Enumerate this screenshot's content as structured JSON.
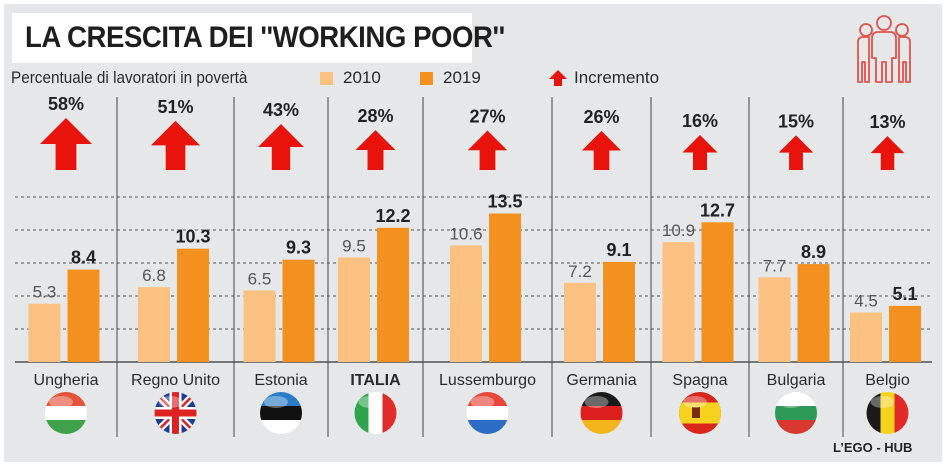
{
  "header": {
    "title": "LA CRESCITA DEI ''WORKING POOR''",
    "subtitle": "Percentuale di lavoratori in povertà",
    "legend": [
      {
        "label": "2010",
        "color": "#fbc180"
      },
      {
        "label": "2019",
        "color": "#f4911e"
      },
      {
        "label": "Incremento",
        "color": "#e8140c",
        "icon": "arrow-up-icon"
      }
    ],
    "icon": "people-group-icon"
  },
  "credit": "L’EGO - HUB",
  "chart_data": {
    "type": "bar",
    "title": "LA CRESCITA DEI ''WORKING POOR''",
    "subtitle": "Percentuale di lavoratori in povertà",
    "xlabel": "",
    "ylabel": "Percentuale di lavoratori in povertà",
    "ylim": [
      0,
      15
    ],
    "gridlines": [
      3,
      6,
      9,
      12,
      15
    ],
    "grid": true,
    "legend_position": "top",
    "categories": [
      "Ungheria",
      "Regno Unito",
      "Estonia",
      "ITALIA",
      "Lussemburgo",
      "Germania",
      "Spagna",
      "Bulgaria",
      "Belgio"
    ],
    "highlight_category": "ITALIA",
    "series": [
      {
        "name": "2010",
        "color": "#fbc180",
        "values": [
          5.3,
          6.8,
          6.5,
          9.5,
          10.6,
          7.2,
          10.9,
          7.7,
          4.5
        ]
      },
      {
        "name": "2019",
        "color": "#f4911e",
        "values": [
          8.4,
          10.3,
          9.3,
          12.2,
          13.5,
          9.1,
          12.7,
          8.9,
          5.1
        ]
      }
    ],
    "increment_labels": [
      "58%",
      "51%",
      "43%",
      "28%",
      "27%",
      "26%",
      "16%",
      "15%",
      "13%"
    ],
    "increment_values": [
      58,
      51,
      43,
      28,
      27,
      26,
      16,
      15,
      13
    ],
    "flags": [
      "flag-hungary-icon",
      "flag-uk-icon",
      "flag-estonia-icon",
      "flag-italy-icon",
      "flag-luxembourg-icon",
      "flag-germany-icon",
      "flag-spain-icon",
      "flag-bulgaria-icon",
      "flag-belgium-icon"
    ]
  }
}
